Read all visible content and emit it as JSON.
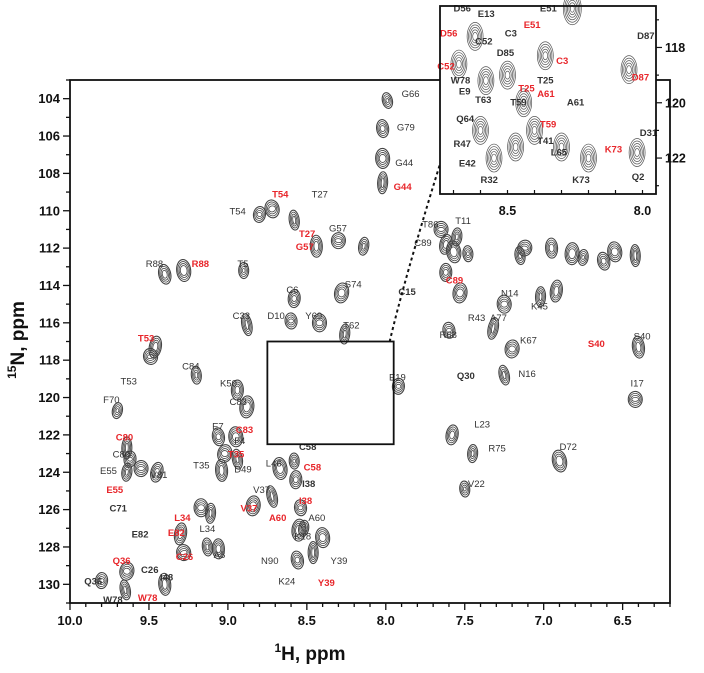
{
  "chart_data": {
    "type": "scatter",
    "title": "",
    "xlabel": {
      "sup": "1",
      "main": "H, ppm"
    },
    "ylabel": {
      "sup": "15",
      "main": "N, ppm"
    },
    "xlim": [
      10.0,
      6.2
    ],
    "ylim": [
      131.0,
      103.0
    ],
    "x_ticks": [
      "10.0",
      "9.5",
      "9.0",
      "8.5",
      "8.0",
      "7.5",
      "7.0",
      "6.5"
    ],
    "y_ticks": [
      "104",
      "106",
      "108",
      "110",
      "112",
      "114",
      "116",
      "118",
      "120",
      "122",
      "124",
      "126",
      "128",
      "130"
    ],
    "colors": {
      "reference": "#333333",
      "highlighted": "#e8262b"
    },
    "series": [
      {
        "name": "",
        "points": [
          {
            "x": 7.99,
            "y": 104.1
          },
          {
            "x": 8.02,
            "y": 105.6
          },
          {
            "x": 8.02,
            "y": 107.2
          },
          {
            "x": 8.02,
            "y": 108.5
          },
          {
            "x": 8.8,
            "y": 110.2
          },
          {
            "x": 8.72,
            "y": 109.9
          },
          {
            "x": 8.58,
            "y": 110.5
          },
          {
            "x": 8.44,
            "y": 111.9
          },
          {
            "x": 8.3,
            "y": 111.6
          },
          {
            "x": 8.14,
            "y": 111.9
          },
          {
            "x": 9.4,
            "y": 113.4
          },
          {
            "x": 9.28,
            "y": 113.2
          },
          {
            "x": 8.9,
            "y": 113.2
          },
          {
            "x": 8.58,
            "y": 114.7
          },
          {
            "x": 8.28,
            "y": 114.4
          },
          {
            "x": 8.88,
            "y": 116.1
          },
          {
            "x": 8.6,
            "y": 115.9
          },
          {
            "x": 8.42,
            "y": 116.0
          },
          {
            "x": 8.26,
            "y": 116.6
          },
          {
            "x": 9.46,
            "y": 117.3
          },
          {
            "x": 9.49,
            "y": 117.8
          },
          {
            "x": 9.2,
            "y": 118.8
          },
          {
            "x": 8.94,
            "y": 119.6
          },
          {
            "x": 8.88,
            "y": 120.5
          },
          {
            "x": 9.7,
            "y": 120.7
          },
          {
            "x": 9.06,
            "y": 122.1
          },
          {
            "x": 8.95,
            "y": 122.1
          },
          {
            "x": 9.64,
            "y": 122.7
          },
          {
            "x": 9.62,
            "y": 123.3
          },
          {
            "x": 9.02,
            "y": 123.0
          },
          {
            "x": 8.94,
            "y": 123.3
          },
          {
            "x": 9.04,
            "y": 123.9
          },
          {
            "x": 9.55,
            "y": 123.8
          },
          {
            "x": 9.64,
            "y": 124.0
          },
          {
            "x": 9.45,
            "y": 124.0
          },
          {
            "x": 8.67,
            "y": 123.8
          },
          {
            "x": 8.58,
            "y": 123.4
          },
          {
            "x": 8.57,
            "y": 124.4
          },
          {
            "x": 8.84,
            "y": 125.8
          },
          {
            "x": 8.72,
            "y": 125.3
          },
          {
            "x": 8.54,
            "y": 125.9
          },
          {
            "x": 9.17,
            "y": 125.9
          },
          {
            "x": 9.11,
            "y": 126.2
          },
          {
            "x": 9.3,
            "y": 127.3
          },
          {
            "x": 9.28,
            "y": 128.3
          },
          {
            "x": 9.13,
            "y": 128.0
          },
          {
            "x": 9.06,
            "y": 128.1
          },
          {
            "x": 8.55,
            "y": 127.1
          },
          {
            "x": 8.52,
            "y": 127.0
          },
          {
            "x": 8.56,
            "y": 128.7
          },
          {
            "x": 8.4,
            "y": 127.5
          },
          {
            "x": 8.46,
            "y": 128.3
          },
          {
            "x": 9.8,
            "y": 129.8
          },
          {
            "x": 9.64,
            "y": 129.3
          },
          {
            "x": 9.65,
            "y": 130.3
          },
          {
            "x": 9.4,
            "y": 130.0
          },
          {
            "x": 7.65,
            "y": 111.0
          },
          {
            "x": 7.55,
            "y": 111.4
          },
          {
            "x": 7.62,
            "y": 111.8
          },
          {
            "x": 7.57,
            "y": 112.2
          },
          {
            "x": 7.48,
            "y": 112.3
          },
          {
            "x": 7.62,
            "y": 113.3
          },
          {
            "x": 7.53,
            "y": 114.4
          },
          {
            "x": 7.32,
            "y": 116.3
          },
          {
            "x": 7.6,
            "y": 116.4
          },
          {
            "x": 7.25,
            "y": 115.0
          },
          {
            "x": 7.02,
            "y": 114.6
          },
          {
            "x": 6.92,
            "y": 114.3
          },
          {
            "x": 7.12,
            "y": 112.0
          },
          {
            "x": 7.15,
            "y": 112.4
          },
          {
            "x": 6.95,
            "y": 112.0
          },
          {
            "x": 6.82,
            "y": 112.3
          },
          {
            "x": 6.75,
            "y": 112.5
          },
          {
            "x": 6.62,
            "y": 112.7
          },
          {
            "x": 6.55,
            "y": 112.2
          },
          {
            "x": 6.42,
            "y": 112.4
          },
          {
            "x": 7.92,
            "y": 119.4
          },
          {
            "x": 7.2,
            "y": 117.4
          },
          {
            "x": 7.25,
            "y": 118.8
          },
          {
            "x": 6.4,
            "y": 117.3
          },
          {
            "x": 6.42,
            "y": 120.1
          },
          {
            "x": 7.45,
            "y": 123.0
          },
          {
            "x": 7.58,
            "y": 122.0
          },
          {
            "x": 6.9,
            "y": 123.4
          },
          {
            "x": 7.5,
            "y": 124.9
          }
        ]
      }
    ],
    "peak_labels": [
      {
        "text": "G66",
        "x": 7.9,
        "y": 103.9,
        "color": "reference"
      },
      {
        "text": "G79",
        "x": 7.93,
        "y": 105.7,
        "color": "reference"
      },
      {
        "text": "G44",
        "x": 7.94,
        "y": 107.6,
        "color": "reference"
      },
      {
        "text": "G44",
        "x": 7.95,
        "y": 108.9,
        "color": "highlighted"
      },
      {
        "text": "T54",
        "x": 8.72,
        "y": 109.3,
        "color": "highlighted"
      },
      {
        "text": "T27",
        "x": 8.47,
        "y": 109.3,
        "color": "reference"
      },
      {
        "text": "T54",
        "x": 8.99,
        "y": 110.2,
        "color": "reference"
      },
      {
        "text": "T27",
        "x": 8.55,
        "y": 111.4,
        "color": "highlighted"
      },
      {
        "text": "G57",
        "x": 8.36,
        "y": 111.1,
        "color": "reference"
      },
      {
        "text": "G57",
        "x": 8.57,
        "y": 112.1,
        "color": "highlighted"
      },
      {
        "text": "R88",
        "x": 9.52,
        "y": 113.0,
        "color": "reference"
      },
      {
        "text": "R88",
        "x": 9.23,
        "y": 113.0,
        "color": "highlighted"
      },
      {
        "text": "T5",
        "x": 8.94,
        "y": 113.0,
        "color": "reference"
      },
      {
        "text": "C6",
        "x": 8.63,
        "y": 114.4,
        "color": "reference"
      },
      {
        "text": "S74",
        "x": 8.26,
        "y": 114.1,
        "color": "reference"
      },
      {
        "text": "C33",
        "x": 8.97,
        "y": 115.8,
        "color": "reference"
      },
      {
        "text": "D10",
        "x": 8.75,
        "y": 115.8,
        "color": "reference"
      },
      {
        "text": "Y69",
        "x": 8.51,
        "y": 115.8,
        "color": "reference"
      },
      {
        "text": "T62",
        "x": 8.27,
        "y": 116.3,
        "color": "reference"
      },
      {
        "text": "T53",
        "x": 9.57,
        "y": 117.0,
        "color": "highlighted"
      },
      {
        "text": "T53",
        "x": 9.68,
        "y": 119.3,
        "color": "reference"
      },
      {
        "text": "C84",
        "x": 9.29,
        "y": 118.5,
        "color": "reference"
      },
      {
        "text": "K50",
        "x": 9.05,
        "y": 119.4,
        "color": "reference"
      },
      {
        "text": "C83",
        "x": 8.99,
        "y": 120.4,
        "color": "reference"
      },
      {
        "text": "F70",
        "x": 9.79,
        "y": 120.3,
        "color": "reference"
      },
      {
        "text": "C83",
        "x": 8.95,
        "y": 121.9,
        "color": "highlighted"
      },
      {
        "text": "E7",
        "x": 9.1,
        "y": 121.7,
        "color": "reference"
      },
      {
        "text": "F4",
        "x": 8.96,
        "y": 122.5,
        "color": "reference"
      },
      {
        "text": "C80",
        "x": 9.71,
        "y": 122.3,
        "color": "highlighted"
      },
      {
        "text": "C80",
        "x": 9.73,
        "y": 123.2,
        "color": "reference"
      },
      {
        "text": "T35",
        "x": 9.0,
        "y": 123.2,
        "color": "highlighted"
      },
      {
        "text": "T35",
        "x": 9.22,
        "y": 123.8,
        "color": "reference"
      },
      {
        "text": "D49",
        "x": 8.96,
        "y": 124.0,
        "color": "reference"
      },
      {
        "text": "E55",
        "x": 9.81,
        "y": 124.1,
        "color": "reference"
      },
      {
        "text": "V81",
        "x": 9.49,
        "y": 124.3,
        "color": "reference"
      },
      {
        "text": "E55",
        "x": 9.77,
        "y": 125.1,
        "color": "highlighted"
      },
      {
        "text": "L46",
        "x": 8.76,
        "y": 123.7,
        "color": "reference"
      },
      {
        "text": "C58",
        "x": 8.55,
        "y": 122.8,
        "color": "reference"
      },
      {
        "text": "C58",
        "x": 8.52,
        "y": 123.9,
        "color": "highlighted"
      },
      {
        "text": "I38",
        "x": 8.53,
        "y": 124.8,
        "color": "reference"
      },
      {
        "text": "I38",
        "x": 8.55,
        "y": 125.7,
        "color": "highlighted"
      },
      {
        "text": "V37",
        "x": 8.84,
        "y": 125.1,
        "color": "reference"
      },
      {
        "text": "V37",
        "x": 8.92,
        "y": 126.1,
        "color": "highlighted"
      },
      {
        "text": "A60",
        "x": 8.74,
        "y": 126.6,
        "color": "highlighted"
      },
      {
        "text": "A60",
        "x": 8.49,
        "y": 126.6,
        "color": "reference"
      },
      {
        "text": "K18",
        "x": 8.58,
        "y": 127.6,
        "color": "reference"
      },
      {
        "text": "C71",
        "x": 9.75,
        "y": 126.1,
        "color": "reference"
      },
      {
        "text": "L34",
        "x": 9.34,
        "y": 126.6,
        "color": "highlighted"
      },
      {
        "text": "L34",
        "x": 9.18,
        "y": 127.2,
        "color": "reference"
      },
      {
        "text": "E82",
        "x": 9.61,
        "y": 127.5,
        "color": "reference"
      },
      {
        "text": "E82",
        "x": 9.38,
        "y": 127.4,
        "color": "highlighted"
      },
      {
        "text": "C26",
        "x": 9.33,
        "y": 128.7,
        "color": "highlighted"
      },
      {
        "text": "A8",
        "x": 9.09,
        "y": 128.6,
        "color": "reference"
      },
      {
        "text": "C26",
        "x": 9.55,
        "y": 129.4,
        "color": "reference"
      },
      {
        "text": "N90",
        "x": 8.79,
        "y": 128.9,
        "color": "reference"
      },
      {
        "text": "Y39",
        "x": 8.35,
        "y": 128.9,
        "color": "reference"
      },
      {
        "text": "K24",
        "x": 8.68,
        "y": 130.0,
        "color": "reference"
      },
      {
        "text": "Y39",
        "x": 8.43,
        "y": 130.1,
        "color": "highlighted"
      },
      {
        "text": "Q36",
        "x": 9.73,
        "y": 128.9,
        "color": "highlighted"
      },
      {
        "text": "Q36",
        "x": 9.91,
        "y": 130.0,
        "color": "reference"
      },
      {
        "text": "I48",
        "x": 9.43,
        "y": 129.8,
        "color": "reference"
      },
      {
        "text": "W78",
        "x": 9.79,
        "y": 131.0,
        "color": "reference"
      },
      {
        "text": "W78",
        "x": 9.57,
        "y": 130.9,
        "color": "highlighted"
      },
      {
        "text": "T86",
        "x": 7.77,
        "y": 110.9,
        "color": "reference"
      },
      {
        "text": "T11",
        "x": 7.56,
        "y": 110.7,
        "color": "reference"
      },
      {
        "text": "C89",
        "x": 7.82,
        "y": 111.9,
        "color": "reference"
      },
      {
        "text": "C89",
        "x": 7.62,
        "y": 113.9,
        "color": "highlighted"
      },
      {
        "text": "C15",
        "x": 7.92,
        "y": 114.5,
        "color": "reference"
      },
      {
        "text": "N14",
        "x": 7.27,
        "y": 114.6,
        "color": "reference"
      },
      {
        "text": "K45",
        "x": 7.08,
        "y": 115.3,
        "color": "reference"
      },
      {
        "text": "R43",
        "x": 7.48,
        "y": 115.9,
        "color": "reference"
      },
      {
        "text": "A77",
        "x": 7.34,
        "y": 115.9,
        "color": "reference"
      },
      {
        "text": "R68",
        "x": 7.66,
        "y": 116.8,
        "color": "reference"
      },
      {
        "text": "E19",
        "x": 7.98,
        "y": 119.1,
        "color": "reference"
      },
      {
        "text": "K67",
        "x": 7.15,
        "y": 117.1,
        "color": "reference"
      },
      {
        "text": "S40",
        "x": 6.72,
        "y": 117.3,
        "color": "highlighted"
      },
      {
        "text": "S40",
        "x": 6.43,
        "y": 116.9,
        "color": "reference"
      },
      {
        "text": "Q30",
        "x": 7.55,
        "y": 119.0,
        "color": "reference"
      },
      {
        "text": "N16",
        "x": 7.16,
        "y": 118.9,
        "color": "reference"
      },
      {
        "text": "I17",
        "x": 6.45,
        "y": 119.4,
        "color": "reference"
      },
      {
        "text": "L23",
        "x": 7.44,
        "y": 121.6,
        "color": "reference"
      },
      {
        "text": "R75",
        "x": 7.35,
        "y": 122.9,
        "color": "reference"
      },
      {
        "text": "D72",
        "x": 6.9,
        "y": 122.8,
        "color": "reference"
      },
      {
        "text": "V22",
        "x": 7.48,
        "y": 124.8,
        "color": "reference"
      }
    ],
    "inset": {
      "xlim": [
        8.75,
        7.95
      ],
      "ylim": [
        117.0,
        122.5
      ],
      "x_ticks": [
        "8.5",
        "8.0"
      ],
      "y_ticks": [
        "118",
        "120",
        "122"
      ],
      "labels": [
        {
          "text": "D56",
          "x": 8.7,
          "y": 117.0,
          "color": "reference"
        },
        {
          "text": "E13",
          "x": 8.61,
          "y": 117.2,
          "color": "reference"
        },
        {
          "text": "E51",
          "x": 8.38,
          "y": 117.0,
          "color": "reference"
        },
        {
          "text": "D56",
          "x": 8.75,
          "y": 117.9,
          "color": "highlighted"
        },
        {
          "text": "E51",
          "x": 8.44,
          "y": 117.6,
          "color": "highlighted"
        },
        {
          "text": "C3",
          "x": 8.51,
          "y": 117.9,
          "color": "reference"
        },
        {
          "text": "D87",
          "x": 8.02,
          "y": 118.0,
          "color": "reference"
        },
        {
          "text": "C52",
          "x": 8.62,
          "y": 118.2,
          "color": "reference"
        },
        {
          "text": "D85",
          "x": 8.54,
          "y": 118.6,
          "color": "reference"
        },
        {
          "text": "C3",
          "x": 8.32,
          "y": 118.9,
          "color": "highlighted"
        },
        {
          "text": "C52",
          "x": 8.76,
          "y": 119.1,
          "color": "highlighted"
        },
        {
          "text": "W78",
          "x": 8.71,
          "y": 119.6,
          "color": "reference"
        },
        {
          "text": "D87",
          "x": 8.04,
          "y": 119.5,
          "color": "highlighted"
        },
        {
          "text": "T25",
          "x": 8.39,
          "y": 119.6,
          "color": "reference"
        },
        {
          "text": "E9",
          "x": 8.68,
          "y": 120.0,
          "color": "reference"
        },
        {
          "text": "T25",
          "x": 8.46,
          "y": 119.9,
          "color": "highlighted"
        },
        {
          "text": "A61",
          "x": 8.39,
          "y": 120.1,
          "color": "highlighted"
        },
        {
          "text": "T63",
          "x": 8.62,
          "y": 120.3,
          "color": "reference"
        },
        {
          "text": "T59",
          "x": 8.49,
          "y": 120.4,
          "color": "reference"
        },
        {
          "text": "A61",
          "x": 8.28,
          "y": 120.4,
          "color": "reference"
        },
        {
          "text": "Q64",
          "x": 8.69,
          "y": 121.0,
          "color": "reference"
        },
        {
          "text": "T59",
          "x": 8.38,
          "y": 121.2,
          "color": "highlighted"
        },
        {
          "text": "R47",
          "x": 8.7,
          "y": 121.9,
          "color": "reference"
        },
        {
          "text": "T41",
          "x": 8.39,
          "y": 121.8,
          "color": "reference"
        },
        {
          "text": "D31",
          "x": 8.01,
          "y": 121.5,
          "color": "reference"
        },
        {
          "text": "L65",
          "x": 8.34,
          "y": 122.2,
          "color": "reference"
        },
        {
          "text": "K73",
          "x": 8.14,
          "y": 122.1,
          "color": "highlighted"
        },
        {
          "text": "E42",
          "x": 8.68,
          "y": 122.6,
          "color": "reference"
        },
        {
          "text": "R32",
          "x": 8.6,
          "y": 123.2,
          "color": "reference"
        },
        {
          "text": "K73",
          "x": 8.26,
          "y": 123.2,
          "color": "reference"
        },
        {
          "text": "Q2",
          "x": 8.04,
          "y": 123.1,
          "color": "reference"
        }
      ]
    },
    "legend": "none",
    "grid": false
  }
}
